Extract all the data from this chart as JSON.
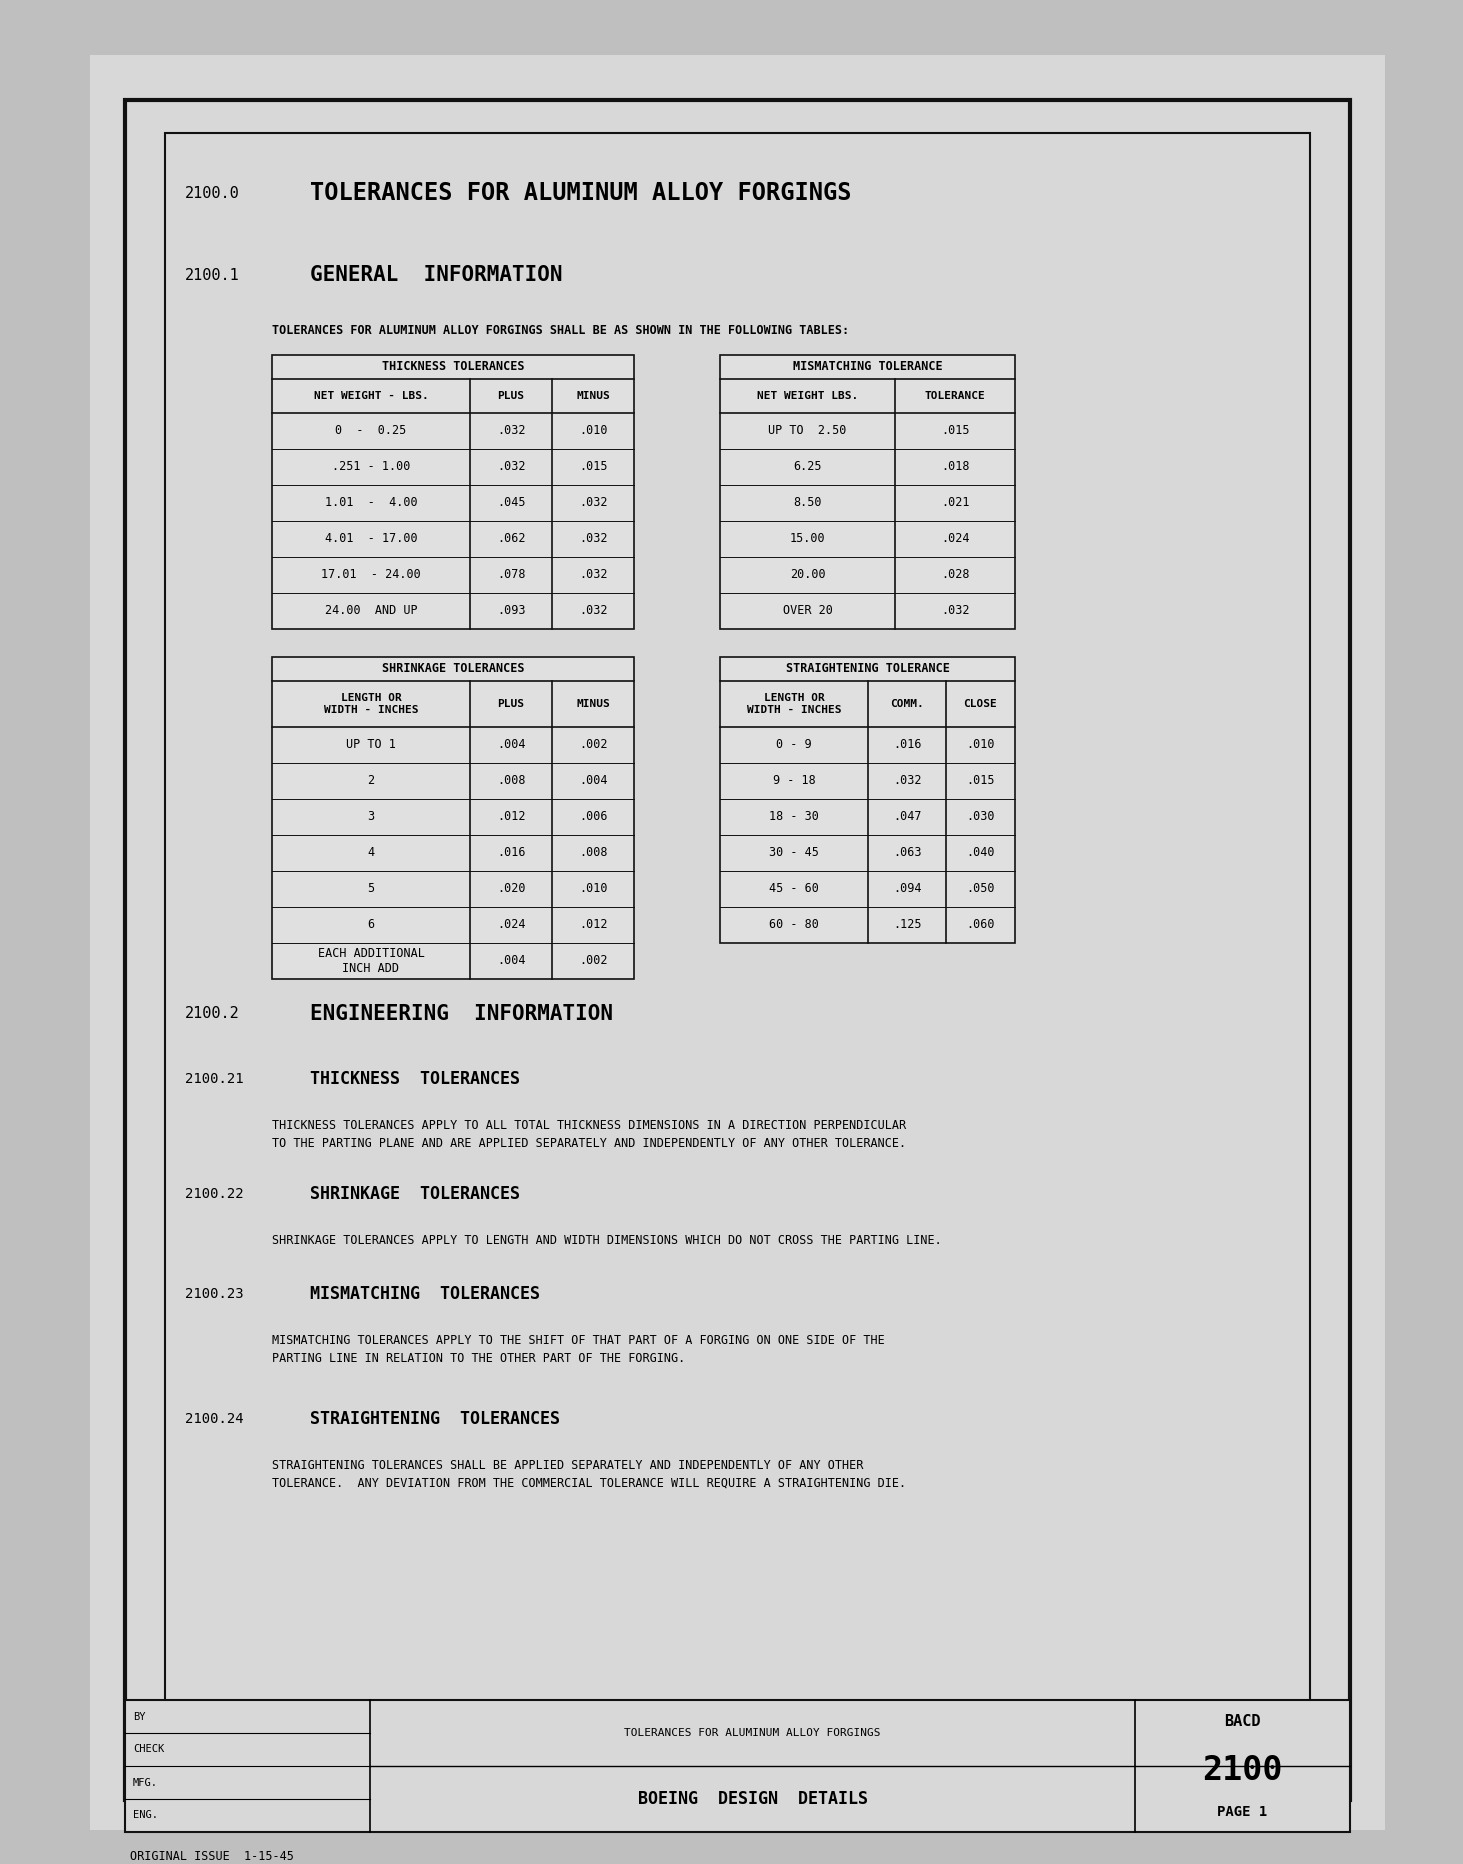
{
  "bg_color": "#c0bfbf",
  "paper_color": "#d8d8d8",
  "title_num": "2100.0",
  "title_text": "TOLERANCES FOR ALUMINUM ALLOY FORGINGS",
  "section1_num": "2100.1",
  "section1_title": "GENERAL  INFORMATION",
  "intro_text": "TOLERANCES FOR ALUMINUM ALLOY FORGINGS SHALL BE AS SHOWN IN THE FOLLOWING TABLES:",
  "thickness_table_title": "THICKNESS TOLERANCES",
  "thickness_headers": [
    "NET WEIGHT - LBS.",
    "PLUS",
    "MINUS"
  ],
  "thickness_rows": [
    [
      "0  -  0.25",
      ".032",
      ".010"
    ],
    [
      ".251 - 1.00",
      ".032",
      ".015"
    ],
    [
      "1.01  -  4.00",
      ".045",
      ".032"
    ],
    [
      "4.01  - 17.00",
      ".062",
      ".032"
    ],
    [
      "17.01  - 24.00",
      ".078",
      ".032"
    ],
    [
      "24.00  AND UP",
      ".093",
      ".032"
    ]
  ],
  "mismatching_table_title": "MISMATCHING TOLERANCE",
  "mismatching_headers": [
    "NET WEIGHT LBS.",
    "TOLERANCE"
  ],
  "mismatching_rows": [
    [
      "UP TO  2.50",
      ".015"
    ],
    [
      "6.25",
      ".018"
    ],
    [
      "8.50",
      ".021"
    ],
    [
      "15.00",
      ".024"
    ],
    [
      "20.00",
      ".028"
    ],
    [
      "OVER 20",
      ".032"
    ]
  ],
  "shrinkage_table_title": "SHRINKAGE TOLERANCES",
  "shrinkage_headers": [
    "LENGTH OR\nWIDTH - INCHES",
    "PLUS",
    "MINUS"
  ],
  "shrinkage_rows": [
    [
      "UP TO 1",
      ".004",
      ".002"
    ],
    [
      "2",
      ".008",
      ".004"
    ],
    [
      "3",
      ".012",
      ".006"
    ],
    [
      "4",
      ".016",
      ".008"
    ],
    [
      "5",
      ".020",
      ".010"
    ],
    [
      "6",
      ".024",
      ".012"
    ],
    [
      "EACH ADDITIONAL\nINCH ADD",
      ".004",
      ".002"
    ]
  ],
  "straightening_table_title": "STRAIGHTENING TOLERANCE",
  "straightening_headers": [
    "LENGTH OR\nWIDTH - INCHES",
    "COMM.",
    "CLOSE"
  ],
  "straightening_rows": [
    [
      "0 - 9",
      ".016",
      ".010"
    ],
    [
      "9 - 18",
      ".032",
      ".015"
    ],
    [
      "18 - 30",
      ".047",
      ".030"
    ],
    [
      "30 - 45",
      ".063",
      ".040"
    ],
    [
      "45 - 60",
      ".094",
      ".050"
    ],
    [
      "60 - 80",
      ".125",
      ".060"
    ]
  ],
  "section2_num": "2100.2",
  "section2_title": "ENGINEERING  INFORMATION",
  "section21_num": "2100.21",
  "section21_title": "THICKNESS  TOLERANCES",
  "section21_text": "THICKNESS TOLERANCES APPLY TO ALL TOTAL THICKNESS DIMENSIONS IN A DIRECTION PERPENDICULAR\nTO THE PARTING PLANE AND ARE APPLIED SEPARATELY AND INDEPENDENTLY OF ANY OTHER TOLERANCE.",
  "section22_num": "2100.22",
  "section22_title": "SHRINKAGE  TOLERANCES",
  "section22_text": "SHRINKAGE TOLERANCES APPLY TO LENGTH AND WIDTH DIMENSIONS WHICH DO NOT CROSS THE PARTING LINE.",
  "section23_num": "2100.23",
  "section23_title": "MISMATCHING  TOLERANCES",
  "section23_text": "MISMATCHING TOLERANCES APPLY TO THE SHIFT OF THAT PART OF A FORGING ON ONE SIDE OF THE\nPARTING LINE IN RELATION TO THE OTHER PART OF THE FORGING.",
  "section24_num": "2100.24",
  "section24_title": "STRAIGHTENING  TOLERANCES",
  "section24_text": "STRAIGHTENING TOLERANCES SHALL BE APPLIED SEPARATELY AND INDEPENDENTLY OF ANY OTHER\nTOLERANCE.  ANY DEVIATION FROM THE COMMERCIAL TOLERANCE WILL REQUIRE A STRAIGHTENING DIE.",
  "footer_center_top": "TOLERANCES FOR ALUMINUM ALLOY FORGINGS",
  "footer_center_bottom": "BOEING  DESIGN  DETAILS",
  "footer_right_code": "BACD",
  "footer_right_num": "2100",
  "footer_right_page": "PAGE 1",
  "original_issue": "ORIGINAL ISSUE  1-15-45"
}
